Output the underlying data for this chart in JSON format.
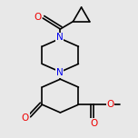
{
  "bg_color": "#e8e8e8",
  "bond_color": "#000000",
  "N_color": "#0000ee",
  "O_color": "#ee0000",
  "lw": 1.2,
  "dbo": 0.018,
  "fs": 7.5,
  "fig_size": [
    1.52,
    1.52
  ],
  "dpi": 100,
  "xlim": [
    0.15,
    0.95
  ],
  "ylim": [
    0.05,
    1.0
  ]
}
